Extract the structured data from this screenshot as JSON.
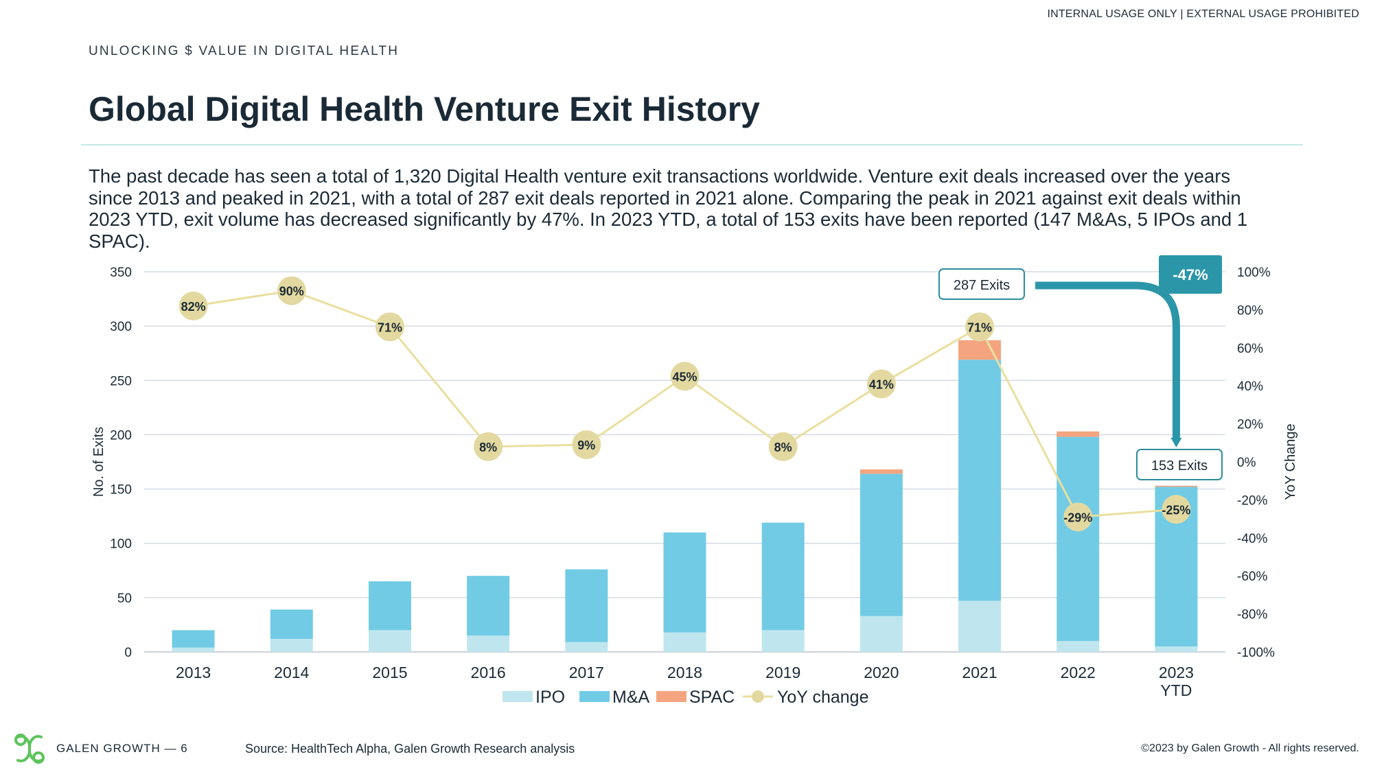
{
  "header": {
    "notice": "INTERNAL USAGE ONLY | EXTERNAL USAGE PROHIBITED",
    "kicker": "UNLOCKING $ VALUE IN DIGITAL HEALTH",
    "title": "Global Digital Health Venture Exit History"
  },
  "intro": "The past decade has seen a total of 1,320 Digital Health venture exit transactions worldwide. Venture exit deals increased over the years since 2013 and peaked in 2021, with a total of 287 exit deals reported in 2021 alone. Comparing the peak in 2021 against exit deals within 2023 YTD, exit volume has decreased significantly by 47%. In 2023 YTD, a total of 153 exits have been reported (147 M&As, 5 IPOs and 1 SPAC).",
  "colors": {
    "ipo": "#bfe6ee",
    "ma": "#72cbe5",
    "spac": "#f4a57f",
    "yoy_line": "#eadf9e",
    "yoy_marker": "#e3d9a0",
    "callout_border": "#2b8c9d",
    "arrow": "#2b96a8",
    "gridline": "#d3dbe3"
  },
  "chart_data": {
    "type": "bar",
    "stacked": true,
    "categories": [
      "2013",
      "2014",
      "2015",
      "2016",
      "2017",
      "2018",
      "2019",
      "2020",
      "2021",
      "2022",
      "2023 YTD"
    ],
    "category_lines": [
      [
        "2013"
      ],
      [
        "2014"
      ],
      [
        "2015"
      ],
      [
        "2016"
      ],
      [
        "2017"
      ],
      [
        "2018"
      ],
      [
        "2019"
      ],
      [
        "2020"
      ],
      [
        "2021"
      ],
      [
        "2022"
      ],
      [
        "2023",
        "YTD"
      ]
    ],
    "series": [
      {
        "name": "IPO",
        "type": "bar",
        "values": [
          4,
          12,
          20,
          15,
          9,
          18,
          20,
          33,
          47,
          10,
          5
        ]
      },
      {
        "name": "M&A",
        "type": "bar",
        "values": [
          16,
          27,
          45,
          55,
          67,
          92,
          99,
          131,
          222,
          188,
          147
        ]
      },
      {
        "name": "SPAC",
        "type": "bar",
        "values": [
          0,
          0,
          0,
          0,
          0,
          0,
          0,
          4,
          18,
          5,
          1
        ]
      },
      {
        "name": "YoY change",
        "type": "line",
        "axis": "right",
        "values": [
          0.82,
          0.9,
          0.71,
          0.08,
          0.09,
          0.45,
          0.08,
          0.41,
          0.71,
          -0.29,
          -0.25
        ],
        "labels": [
          "82%",
          "90%",
          "71%",
          "8%",
          "9%",
          "45%",
          "8%",
          "41%",
          "71%",
          "-29%",
          "-25%"
        ]
      }
    ],
    "ylabel": "No. of Exits",
    "ylim": [
      0,
      350
    ],
    "yticks": [
      "0",
      "50",
      "100",
      "150",
      "200",
      "250",
      "300",
      "350"
    ],
    "y2label": "YoY Change",
    "y2lim": [
      -1,
      1
    ],
    "y2ticks": [
      "-100%",
      "-80%",
      "-60%",
      "-40%",
      "-20%",
      "0%",
      "20%",
      "40%",
      "60%",
      "80%",
      "100%"
    ],
    "grid": true,
    "legend_position": "bottom",
    "annotations": {
      "peak_label": "287 Exits",
      "latest_label": "153 Exits",
      "change_label": "-47%"
    }
  },
  "footer": {
    "brand": "GALEN GROWTH — 6",
    "source": "Source: HealthTech Alpha, Galen Growth Research analysis",
    "copyright": "©2023 by Galen Growth  - All rights reserved."
  }
}
